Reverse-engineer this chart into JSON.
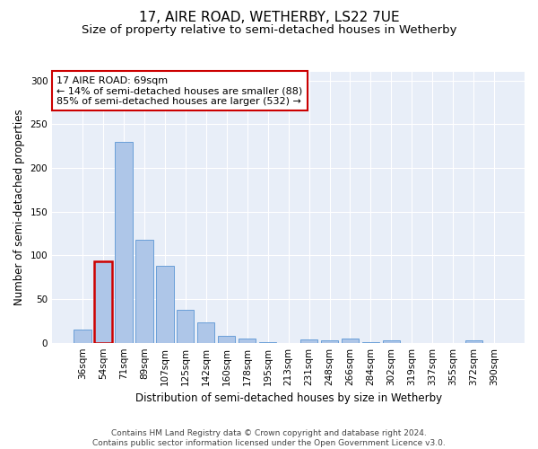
{
  "title_line1": "17, AIRE ROAD, WETHERBY, LS22 7UE",
  "title_line2": "Size of property relative to semi-detached houses in Wetherby",
  "xlabel": "Distribution of semi-detached houses by size in Wetherby",
  "ylabel": "Number of semi-detached properties",
  "categories": [
    "36sqm",
    "54sqm",
    "71sqm",
    "89sqm",
    "107sqm",
    "125sqm",
    "142sqm",
    "160sqm",
    "178sqm",
    "195sqm",
    "213sqm",
    "231sqm",
    "248sqm",
    "266sqm",
    "284sqm",
    "302sqm",
    "319sqm",
    "337sqm",
    "355sqm",
    "372sqm",
    "390sqm"
  ],
  "values": [
    15,
    93,
    230,
    118,
    88,
    38,
    23,
    8,
    5,
    1,
    0,
    4,
    3,
    5,
    1,
    3,
    0,
    0,
    0,
    3,
    0
  ],
  "bar_color": "#aec6e8",
  "bar_edge_color": "#6a9fd8",
  "highlight_bar_index": 1,
  "highlight_edge_color": "#cc0000",
  "annotation_box_text": "17 AIRE ROAD: 69sqm\n← 14% of semi-detached houses are smaller (88)\n85% of semi-detached houses are larger (532) →",
  "box_edge_color": "#cc0000",
  "ylim": [
    0,
    310
  ],
  "yticks": [
    0,
    50,
    100,
    150,
    200,
    250,
    300
  ],
  "background_color": "#e8eef8",
  "footer_line1": "Contains HM Land Registry data © Crown copyright and database right 2024.",
  "footer_line2": "Contains public sector information licensed under the Open Government Licence v3.0.",
  "title_fontsize": 11,
  "subtitle_fontsize": 9.5,
  "axis_label_fontsize": 8.5,
  "tick_fontsize": 7.5,
  "annotation_fontsize": 8,
  "footer_fontsize": 6.5
}
